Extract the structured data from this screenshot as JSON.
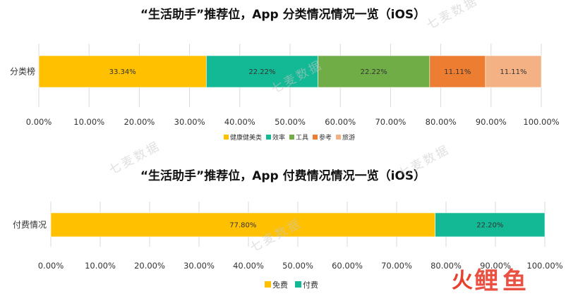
{
  "watermark": "七麦数据",
  "logo": {
    "glyph": "火",
    "text": "鲤鱼"
  },
  "chart_data": [
    {
      "type": "bar",
      "orientation": "horizontal",
      "stacked": true,
      "percent": true,
      "title": "“生活助手”推荐位，App 分类情况情况一览（iOS）",
      "categories": [
        "分类榜"
      ],
      "series": [
        {
          "name": "健康健美类",
          "values": [
            33.34
          ],
          "color": "#ffc000"
        },
        {
          "name": "效率",
          "values": [
            22.22
          ],
          "color": "#13b894"
        },
        {
          "name": "工具",
          "values": [
            22.22
          ],
          "color": "#70ad47"
        },
        {
          "name": "参考",
          "values": [
            11.11
          ],
          "color": "#ed7d31"
        },
        {
          "name": "旅游",
          "values": [
            11.11
          ],
          "color": "#f4b183"
        }
      ],
      "data_labels": [
        "33.34%",
        "22.22%",
        "22.22%",
        "11.11%",
        "11.11%"
      ],
      "xlim": [
        0,
        100
      ],
      "xticks": [
        "0.00%",
        "10.00%",
        "20.00%",
        "30.00%",
        "40.00%",
        "50.00%",
        "60.00%",
        "70.00%",
        "80.00%",
        "90.00%",
        "100.00%"
      ],
      "grid": true,
      "legend": "bottom"
    },
    {
      "type": "bar",
      "orientation": "horizontal",
      "stacked": true,
      "percent": true,
      "title": "“生活助手”推荐位，App 付费情况情况一览（iOS）",
      "categories": [
        "付费情况"
      ],
      "series": [
        {
          "name": "免费",
          "values": [
            77.8
          ],
          "color": "#ffc000"
        },
        {
          "name": "付费",
          "values": [
            22.2
          ],
          "color": "#13b894"
        }
      ],
      "data_labels": [
        "77.80%",
        "22.20%"
      ],
      "xlim": [
        0,
        100
      ],
      "xticks": [
        "0.00%",
        "10.00%",
        "20.00%",
        "30.00%",
        "40.00%",
        "50.00%",
        "60.00%",
        "70.00%",
        "80.00%",
        "90.00%",
        "100.00%"
      ],
      "grid": true,
      "legend": "bottom"
    }
  ]
}
